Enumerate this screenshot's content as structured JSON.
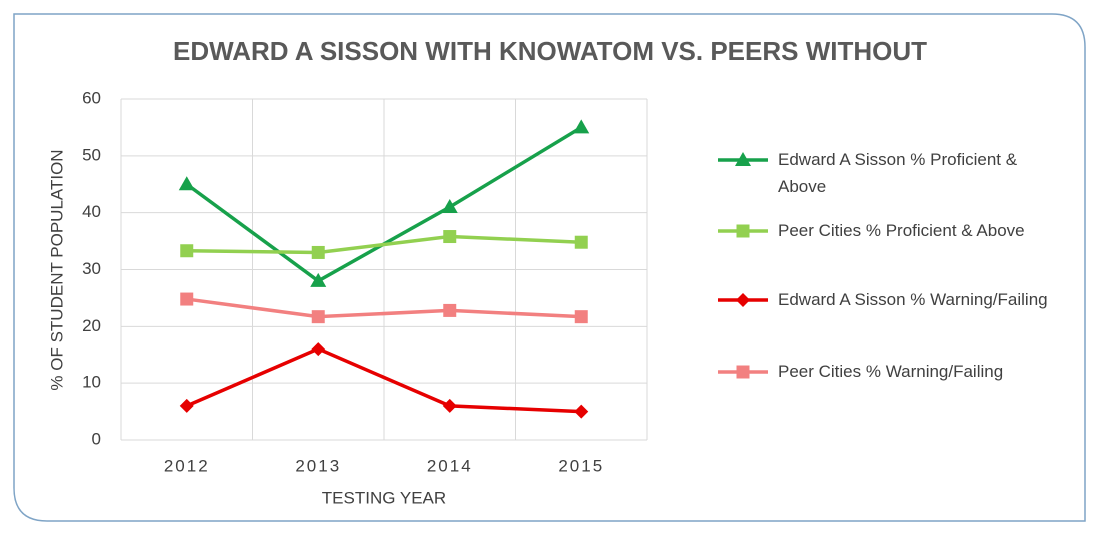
{
  "chart_data": {
    "type": "line",
    "title": "EDWARD A SISSON WITH KNOWATOM VS. PEERS WITHOUT",
    "x_label": "TESTING YEAR",
    "y_label": "% OF STUDENT POPULATION",
    "categories": [
      "2012",
      "2013",
      "2014",
      "2015"
    ],
    "series": [
      {
        "name": "Edward A Sisson % Proficient & Above",
        "color": "#17a14b",
        "marker": "triangle",
        "values": [
          45,
          28,
          41,
          55
        ]
      },
      {
        "name": "Peer Cities % Proficient & Above",
        "color": "#92d050",
        "marker": "square",
        "values": [
          33.3,
          33,
          35.8,
          34.8
        ]
      },
      {
        "name": "Edward A Sisson % Warning/Failing",
        "color": "#e60000",
        "marker": "diamond",
        "values": [
          6,
          16,
          6,
          5
        ]
      },
      {
        "name": "Peer Cities % Warning/Failing",
        "color": "#f28080",
        "marker": "square",
        "values": [
          24.8,
          21.7,
          22.8,
          21.7
        ]
      }
    ],
    "ylim": [
      0,
      60
    ],
    "yticks": [
      0,
      10,
      20,
      30,
      40,
      50,
      60
    ],
    "grid": true,
    "legend": "right"
  }
}
